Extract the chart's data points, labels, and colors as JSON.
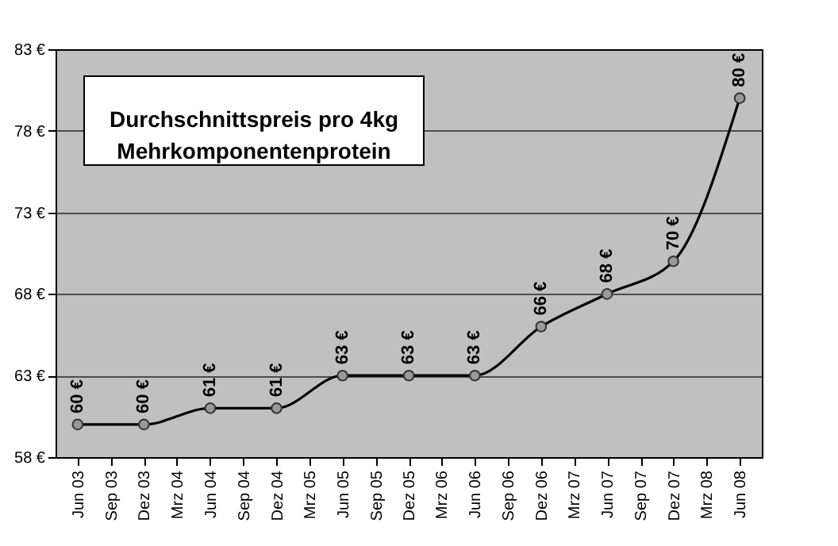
{
  "chart_data": {
    "type": "line",
    "title": "Durchschnittspreis pro 4kg\nMehrkomponentenprotein",
    "x": [
      "2003-06",
      "2003-12",
      "2004-06",
      "2004-12",
      "2005-06",
      "2005-12",
      "2006-06",
      "2006-12",
      "2007-06",
      "2007-12",
      "2008-06"
    ],
    "series": [
      {
        "color": "#000000",
        "values": [
          60,
          60,
          61,
          61,
          63,
          63,
          63,
          66,
          68,
          70,
          80
        ],
        "value_labels": [
          "60 €",
          "60 €",
          "61 €",
          "61 €",
          "63 €",
          "63 €",
          "63 €",
          "66 €",
          "68 €",
          "70 €",
          "80 €"
        ]
      }
    ],
    "xlim": [
      "2003-04",
      "2008-08"
    ],
    "xticks": [
      {
        "value": "2003-06",
        "label": "Jun 03"
      },
      {
        "value": "2003-09",
        "label": "Sep 03"
      },
      {
        "value": "2003-12",
        "label": "Dez 03"
      },
      {
        "value": "2004-03",
        "label": "Mrz 04"
      },
      {
        "value": "2004-06",
        "label": "Jun 04"
      },
      {
        "value": "2004-09",
        "label": "Sep 04"
      },
      {
        "value": "2004-12",
        "label": "Dez 04"
      },
      {
        "value": "2005-03",
        "label": "Mrz 05"
      },
      {
        "value": "2005-06",
        "label": "Jun 05"
      },
      {
        "value": "2005-09",
        "label": "Sep 05"
      },
      {
        "value": "2005-12",
        "label": "Dez 05"
      },
      {
        "value": "2006-03",
        "label": "Mrz 06"
      },
      {
        "value": "2006-06",
        "label": "Jun 06"
      },
      {
        "value": "2006-09",
        "label": "Sep 06"
      },
      {
        "value": "2006-12",
        "label": "Dez 06"
      },
      {
        "value": "2007-03",
        "label": "Mrz 07"
      },
      {
        "value": "2007-06",
        "label": "Jun 07"
      },
      {
        "value": "2007-09",
        "label": "Sep 07"
      },
      {
        "value": "2007-12",
        "label": "Dez 07"
      },
      {
        "value": "2008-03",
        "label": "Mrz 08"
      },
      {
        "value": "2008-06",
        "label": "Jun 08"
      }
    ],
    "ylim": [
      58,
      83
    ],
    "yticks": [
      {
        "value": 58,
        "label": "58 €"
      },
      {
        "value": 63,
        "label": "63 €"
      },
      {
        "value": 68,
        "label": "68 €"
      },
      {
        "value": 73,
        "label": "73 €"
      },
      {
        "value": 78,
        "label": "78 €"
      },
      {
        "value": 83,
        "label": "83 €"
      }
    ],
    "grid": "y",
    "marker": "circle",
    "line_style": "solid"
  }
}
